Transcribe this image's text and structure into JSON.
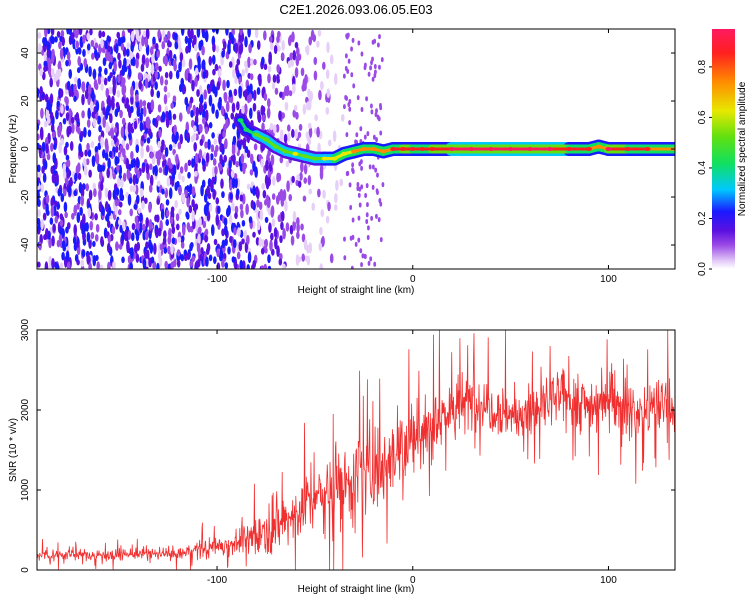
{
  "title": "C2E1.2026.093.06.05.E03",
  "chart_data": [
    {
      "type": "heatmap",
      "xlabel": "Height of straight line (km)",
      "ylabel": "Frequency (Hz)",
      "xlim": [
        -192,
        134
      ],
      "ylim": [
        -50,
        50
      ],
      "x_ticks": [
        -100,
        0,
        100
      ],
      "y_ticks": [
        -40,
        -20,
        0,
        20,
        40
      ],
      "colorbar": {
        "label": "Normalized spectral amplitude",
        "range": [
          0,
          0.95
        ],
        "ticks": [
          0.0,
          0.2,
          0.4,
          0.6,
          0.8
        ],
        "colormap": [
          "#ffffff",
          "#e6d0f8",
          "#9a4ae6",
          "#5a10e0",
          "#1a1aff",
          "#00c8ff",
          "#10e060",
          "#60e010",
          "#e8e800",
          "#ff8c00",
          "#ff2020",
          "#ff1a60"
        ]
      },
      "noise_region": {
        "x_from": -192,
        "x_to": -35,
        "density_falloff_start": -88
      },
      "ridge": [
        {
          "x": -88,
          "y": 12,
          "amplitude": 0.35
        },
        {
          "x": -85,
          "y": 8,
          "amplitude": 0.4
        },
        {
          "x": -80,
          "y": 6,
          "amplitude": 0.45
        },
        {
          "x": -75,
          "y": 4,
          "amplitude": 0.45
        },
        {
          "x": -70,
          "y": 1,
          "amplitude": 0.5
        },
        {
          "x": -65,
          "y": -1,
          "amplitude": 0.5
        },
        {
          "x": -60,
          "y": -2,
          "amplitude": 0.55
        },
        {
          "x": -55,
          "y": -3,
          "amplitude": 0.5
        },
        {
          "x": -50,
          "y": -4,
          "amplitude": 0.5
        },
        {
          "x": -45,
          "y": -4,
          "amplitude": 0.55
        },
        {
          "x": -40,
          "y": -4,
          "amplitude": 0.6
        },
        {
          "x": -35,
          "y": -2,
          "amplitude": 0.6
        },
        {
          "x": -30,
          "y": -1,
          "amplitude": 0.65
        },
        {
          "x": -25,
          "y": 0,
          "amplitude": 0.7
        },
        {
          "x": -20,
          "y": 0,
          "amplitude": 0.7
        },
        {
          "x": -15,
          "y": -1,
          "amplitude": 0.7
        },
        {
          "x": -10,
          "y": 0,
          "amplitude": 0.75
        },
        {
          "x": -5,
          "y": 0,
          "amplitude": 0.8
        },
        {
          "x": 0,
          "y": 0,
          "amplitude": 0.85
        },
        {
          "x": 5,
          "y": 0,
          "amplitude": 0.75
        },
        {
          "x": 10,
          "y": 0,
          "amplitude": 0.8
        },
        {
          "x": 20,
          "y": 0,
          "amplitude": 0.9
        },
        {
          "x": 30,
          "y": 0,
          "amplitude": 0.9
        },
        {
          "x": 40,
          "y": 0,
          "amplitude": 0.92
        },
        {
          "x": 50,
          "y": 0,
          "amplitude": 0.9
        },
        {
          "x": 60,
          "y": 0,
          "amplitude": 0.9
        },
        {
          "x": 70,
          "y": 0,
          "amplitude": 0.88
        },
        {
          "x": 80,
          "y": 0,
          "amplitude": 0.85
        },
        {
          "x": 90,
          "y": 0,
          "amplitude": 0.75
        },
        {
          "x": 95,
          "y": 1,
          "amplitude": 0.7
        },
        {
          "x": 100,
          "y": 0,
          "amplitude": 0.9
        },
        {
          "x": 110,
          "y": 0,
          "amplitude": 0.8
        },
        {
          "x": 120,
          "y": 0,
          "amplitude": 0.75
        },
        {
          "x": 134,
          "y": 0,
          "amplitude": 0.7
        }
      ]
    },
    {
      "type": "line",
      "xlabel": "Height of straight line (km)",
      "ylabel": "SNR (10 * v/v)",
      "xlim": [
        -192,
        134
      ],
      "ylim": [
        0,
        3000
      ],
      "x_ticks": [
        -100,
        0,
        100
      ],
      "y_ticks": [
        0,
        1000,
        2000,
        3000
      ],
      "color": "#f03030",
      "series": [
        {
          "x": [
            -192,
            -180,
            -160,
            -140,
            -120,
            -110,
            -100,
            -95,
            -90,
            -85,
            -80,
            -75,
            -70,
            -65,
            -60,
            -55,
            -50,
            -45,
            -40,
            -35,
            -30,
            -25,
            -20,
            -15,
            -10,
            -5,
            0,
            5,
            10,
            15,
            20,
            25,
            30,
            35,
            40,
            45,
            50,
            55,
            60,
            65,
            70,
            75,
            80,
            85,
            90,
            95,
            100,
            105,
            110,
            115,
            120,
            125,
            134
          ],
          "center": [
            200,
            190,
            190,
            200,
            200,
            250,
            300,
            320,
            340,
            380,
            450,
            500,
            560,
            620,
            700,
            820,
            900,
            950,
            1000,
            1100,
            1200,
            1150,
            1300,
            1350,
            1500,
            1550,
            1600,
            1700,
            1850,
            1950,
            2000,
            2050,
            2100,
            2100,
            2050,
            2000,
            1950,
            1900,
            1950,
            2050,
            2100,
            2150,
            2150,
            2100,
            2050,
            2100,
            2200,
            2100,
            2000,
            1950,
            2000,
            2050,
            2050
          ],
          "noise": [
            80,
            80,
            80,
            80,
            90,
            120,
            150,
            160,
            180,
            220,
            280,
            320,
            350,
            380,
            400,
            450,
            500,
            520,
            550,
            600,
            650,
            600,
            650,
            650,
            650,
            600,
            600,
            550,
            500,
            500,
            450,
            450,
            450,
            400,
            400,
            400,
            400,
            400,
            400,
            400,
            420,
            420,
            420,
            420,
            420,
            420,
            400,
            400,
            400,
            400,
            400,
            400,
            400
          ]
        }
      ]
    }
  ]
}
